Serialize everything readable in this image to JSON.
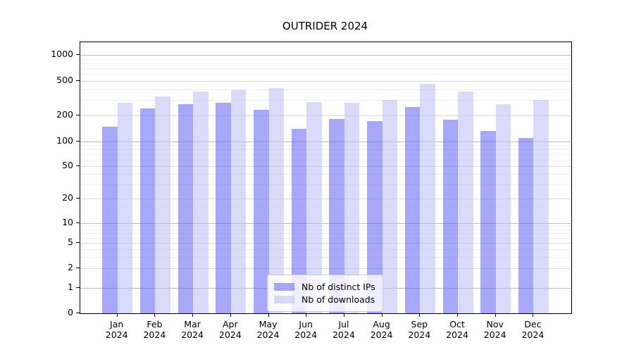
{
  "title": "OUTRIDER 2024",
  "chart_data": {
    "type": "bar",
    "title": "OUTRIDER 2024",
    "categories": [
      "Jan",
      "Feb",
      "Mar",
      "Apr",
      "May",
      "Jun",
      "Jul",
      "Aug",
      "Sep",
      "Oct",
      "Nov",
      "Dec"
    ],
    "year_label": "2024",
    "series": [
      {
        "name": "Nb of distinct IPs",
        "color": "rgba(81,81,245,0.5)",
        "values": [
          149,
          240,
          269,
          281,
          234,
          139,
          182,
          171,
          251,
          178,
          132,
          109
        ]
      },
      {
        "name": "Nb of downloads",
        "color": "rgba(181,181,245,0.5)",
        "values": [
          281,
          333,
          377,
          394,
          414,
          288,
          281,
          303,
          466,
          379,
          270,
          301
        ]
      }
    ],
    "yticks": [
      0,
      1,
      2,
      5,
      10,
      20,
      50,
      100,
      200,
      500,
      1000
    ],
    "major_gridline_values": [
      1,
      10,
      100,
      1000
    ],
    "minor_gridline_values": [
      3,
      4,
      6,
      7,
      8,
      9,
      30,
      40,
      60,
      70,
      80,
      90,
      300,
      400,
      600,
      700,
      800,
      900
    ],
    "scale": {
      "type": "symlog",
      "anchor_values": [
        0,
        1,
        10,
        100,
        1000
      ],
      "anchor_fracs_from_top": [
        1.0,
        0.906,
        0.668,
        0.366,
        0.047
      ]
    },
    "ylim": [
      0,
      1400
    ],
    "legend_position": "bottom-center",
    "grid": true
  }
}
